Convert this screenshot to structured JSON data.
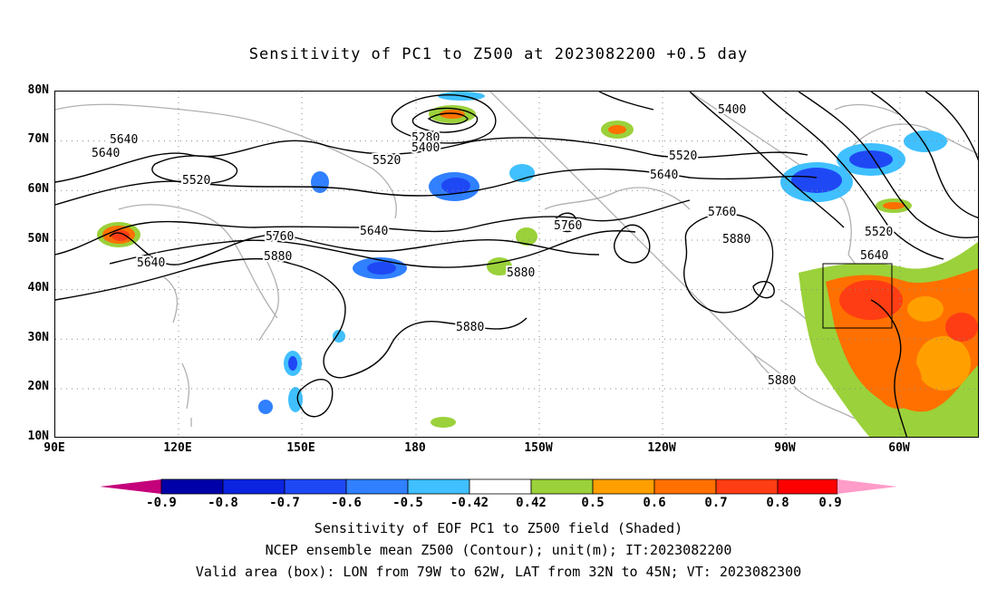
{
  "title": "Sensitivity of PC1 to Z500 at 2023082200 +0.5 day",
  "map": {
    "lat_labels": [
      "80N",
      "70N",
      "60N",
      "50N",
      "40N",
      "30N",
      "20N",
      "10N"
    ],
    "lon_labels": [
      "90E",
      "120E",
      "150E",
      "180",
      "150W",
      "120W",
      "90W",
      "60W"
    ],
    "lon_range": [
      90,
      315
    ],
    "lat_range": [
      10,
      80
    ],
    "contour_labels": [
      "5640",
      "5640",
      "5520",
      "5640",
      "5760",
      "5880",
      "5280",
      "5400",
      "5520",
      "5640",
      "5760",
      "5880",
      "5520",
      "5640",
      "5760",
      "5880",
      "5400",
      "5520",
      "5640",
      "5880",
      "5880"
    ],
    "valid_box": {
      "lon_min": -79,
      "lon_max": -62,
      "lat_min": 32,
      "lat_max": 45
    }
  },
  "colorbar": {
    "labels": [
      "-0.9",
      "-0.8",
      "-0.7",
      "-0.6",
      "-0.5",
      "-0.42",
      "0.42",
      "0.5",
      "0.6",
      "0.7",
      "0.8",
      "0.9"
    ],
    "colors": [
      "#c4007a",
      "#0000a8",
      "#0a24e0",
      "#1f48f5",
      "#3080ff",
      "#40c0ff",
      "#ffffff",
      "#9bd13a",
      "#ffa000",
      "#ff7000",
      "#ff3d14",
      "#ff0000",
      "#ff9cc8"
    ]
  },
  "captions": {
    "line1": "Sensitivity of EOF PC1 to Z500 field (Shaded)",
    "line2": "NCEP ensemble mean Z500 (Contour); unit(m); IT:2023082200",
    "line3": "Valid area (box): LON from 79W to 62W, LAT from 32N to 45N; VT: 2023082300"
  }
}
